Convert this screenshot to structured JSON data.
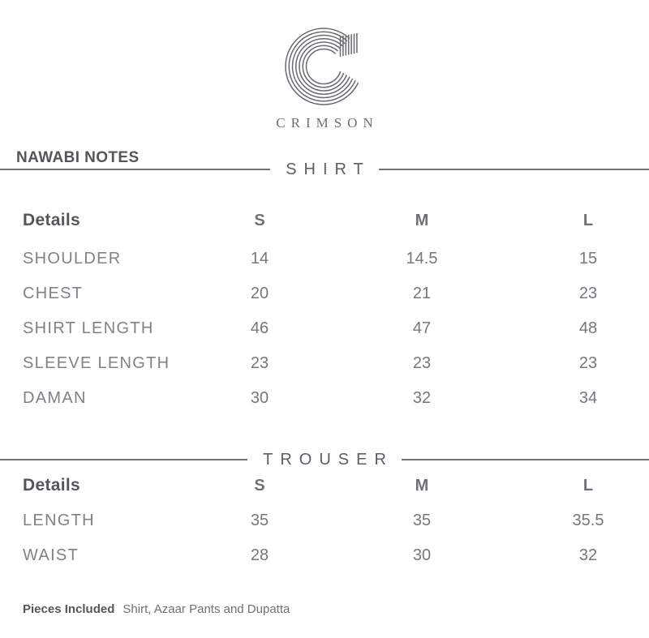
{
  "brand": {
    "logo_text": "CRIMSON",
    "collection_label": "NAWABI NOTES"
  },
  "colors": {
    "heading_dark": "#53575c",
    "column_header": "#6d7175",
    "value_text": "#74777b",
    "label_text": "#7f8286",
    "divider_line": "#71757a",
    "logo_gray": "#6a6e72",
    "background": "#ffffff"
  },
  "sections": [
    {
      "title": "SHIRT",
      "columns": [
        "Details",
        "S",
        "M",
        "L"
      ],
      "rows": [
        {
          "label": "SHOULDER",
          "values": [
            "14",
            "14.5",
            "15"
          ]
        },
        {
          "label": "CHEST",
          "values": [
            "20",
            "21",
            "23"
          ]
        },
        {
          "label": "SHIRT LENGTH",
          "values": [
            "46",
            "47",
            "48"
          ]
        },
        {
          "label": "SLEEVE LENGTH",
          "values": [
            "23",
            "23",
            "23"
          ]
        },
        {
          "label": "DAMAN",
          "values": [
            "30",
            "32",
            "34"
          ]
        }
      ]
    },
    {
      "title": "TROUSER",
      "columns": [
        "Details",
        "S",
        "M",
        "L"
      ],
      "rows": [
        {
          "label": "LENGTH",
          "values": [
            "35",
            "35",
            "35.5"
          ]
        },
        {
          "label": "WAIST",
          "values": [
            "28",
            "30",
            "32"
          ]
        }
      ]
    }
  ],
  "footer": {
    "label": "Pieces Included",
    "text": "Shirt, Azaar Pants and Dupatta"
  }
}
